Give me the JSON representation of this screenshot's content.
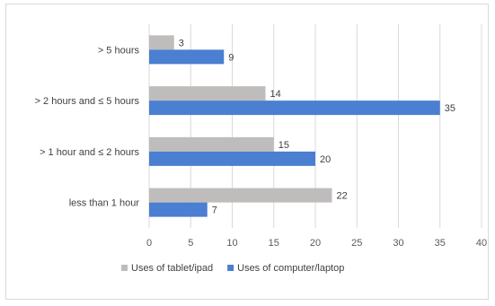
{
  "chart_data": {
    "type": "bar",
    "orientation": "horizontal",
    "categories": [
      "> 5 hours",
      "> 2 hours and ≤ 5 hours",
      "> 1 hour and ≤ 2 hours",
      "less than 1 hour"
    ],
    "series": [
      {
        "name": "Uses of tablet/ipad",
        "values": [
          3,
          14,
          15,
          22
        ],
        "color": "#bfbcbc"
      },
      {
        "name": "Uses of computer/laptop",
        "values": [
          9,
          35,
          20,
          7
        ],
        "color": "#4a7fd1"
      }
    ],
    "xlim": [
      0,
      40
    ],
    "xticks": [
      "0",
      "5",
      "10",
      "15",
      "20",
      "25",
      "30",
      "35",
      "40"
    ],
    "grid": "vertical",
    "legend": "bottom",
    "title": "",
    "xlabel": "",
    "ylabel": ""
  }
}
